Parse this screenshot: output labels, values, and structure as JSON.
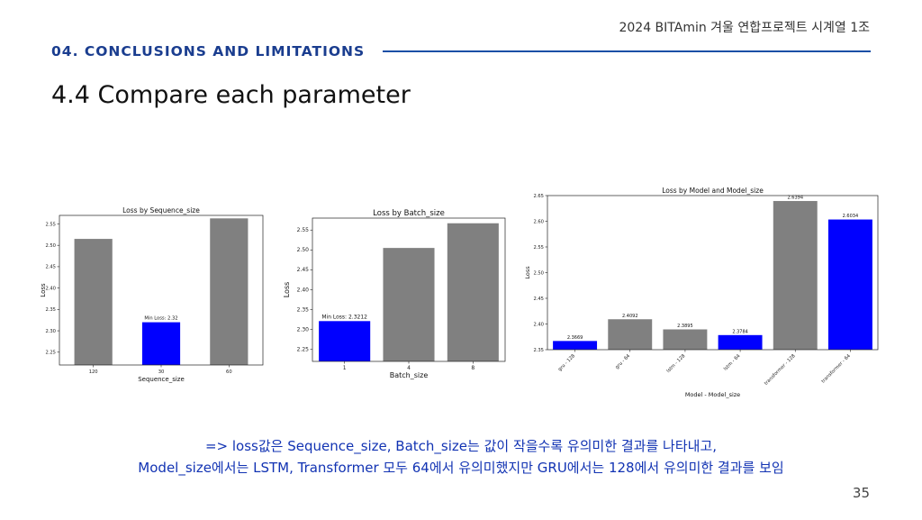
{
  "header": {
    "org_label": "2024 BITAmin 겨울 연합프로젝트 시계열 1조"
  },
  "section": {
    "label": "04. CONCLUSIONS AND LIMITATIONS"
  },
  "slide": {
    "title": "4.4 Compare each parameter",
    "page_number": "35"
  },
  "note": {
    "line1": "=> loss값은 Sequence_size, Batch_size는 값이 작을수록 유의미한 결과를 나타내고,",
    "line2": "Model_size에서는 LSTM, Transformer 모두 64에서 유의미했지만 GRU에서는 128에서 유의미한 결과를 보임"
  },
  "colors": {
    "bar_default": "#808080",
    "bar_highlight": "#0000ff",
    "accent": "#1a4fa6"
  },
  "chart_data": [
    {
      "type": "bar",
      "title": "Loss by Sequence_size",
      "xlabel": "Sequence_size",
      "ylabel": "Loss",
      "categories": [
        "120",
        "30",
        "60"
      ],
      "values": [
        2.515,
        2.32,
        2.563
      ],
      "highlight": [
        false,
        true,
        false
      ],
      "annotation": {
        "index": 1,
        "text": "Min Loss: 2.32"
      },
      "ylim": [
        2.22,
        2.57
      ],
      "yticks": [
        2.25,
        2.3,
        2.35,
        2.4,
        2.45,
        2.5,
        2.55
      ],
      "ytick_labels": [
        "2.25",
        "2.30",
        "2.35",
        "2.40",
        "2.45",
        "2.50",
        "2.55"
      ]
    },
    {
      "type": "bar",
      "title": "Loss by Batch_size",
      "xlabel": "Batch_size",
      "ylabel": "Loss",
      "categories": [
        "1",
        "4",
        "8"
      ],
      "values": [
        2.3212,
        2.505,
        2.567
      ],
      "highlight": [
        true,
        false,
        false
      ],
      "annotation": {
        "index": 0,
        "text": "Min Loss: 2.3212"
      },
      "ylim": [
        2.22,
        2.58
      ],
      "yticks": [
        2.25,
        2.3,
        2.35,
        2.4,
        2.45,
        2.5,
        2.55
      ],
      "ytick_labels": [
        "2.25",
        "2.30",
        "2.35",
        "2.40",
        "2.45",
        "2.50",
        "2.55"
      ]
    },
    {
      "type": "bar",
      "title": "Loss by Model and Model_size",
      "xlabel": "Model - Model_size",
      "ylabel": "Loss",
      "categories": [
        "gru - 128",
        "gru - 64",
        "lstm - 128",
        "lstm - 64",
        "transformer - 128",
        "transformer - 64"
      ],
      "values": [
        2.3669,
        2.4092,
        2.3895,
        2.3784,
        2.6394,
        2.6034
      ],
      "value_labels": [
        "2.3669",
        "2.4092",
        "2.3895",
        "2.3784",
        "2.6394",
        "2.6034"
      ],
      "highlight": [
        true,
        false,
        false,
        true,
        false,
        true
      ],
      "ylim": [
        2.35,
        2.65
      ],
      "yticks": [
        2.35,
        2.4,
        2.45,
        2.5,
        2.55,
        2.6,
        2.65
      ],
      "ytick_labels": [
        "2.35",
        "2.40",
        "2.45",
        "2.50",
        "2.55",
        "2.60",
        "2.65"
      ]
    }
  ]
}
